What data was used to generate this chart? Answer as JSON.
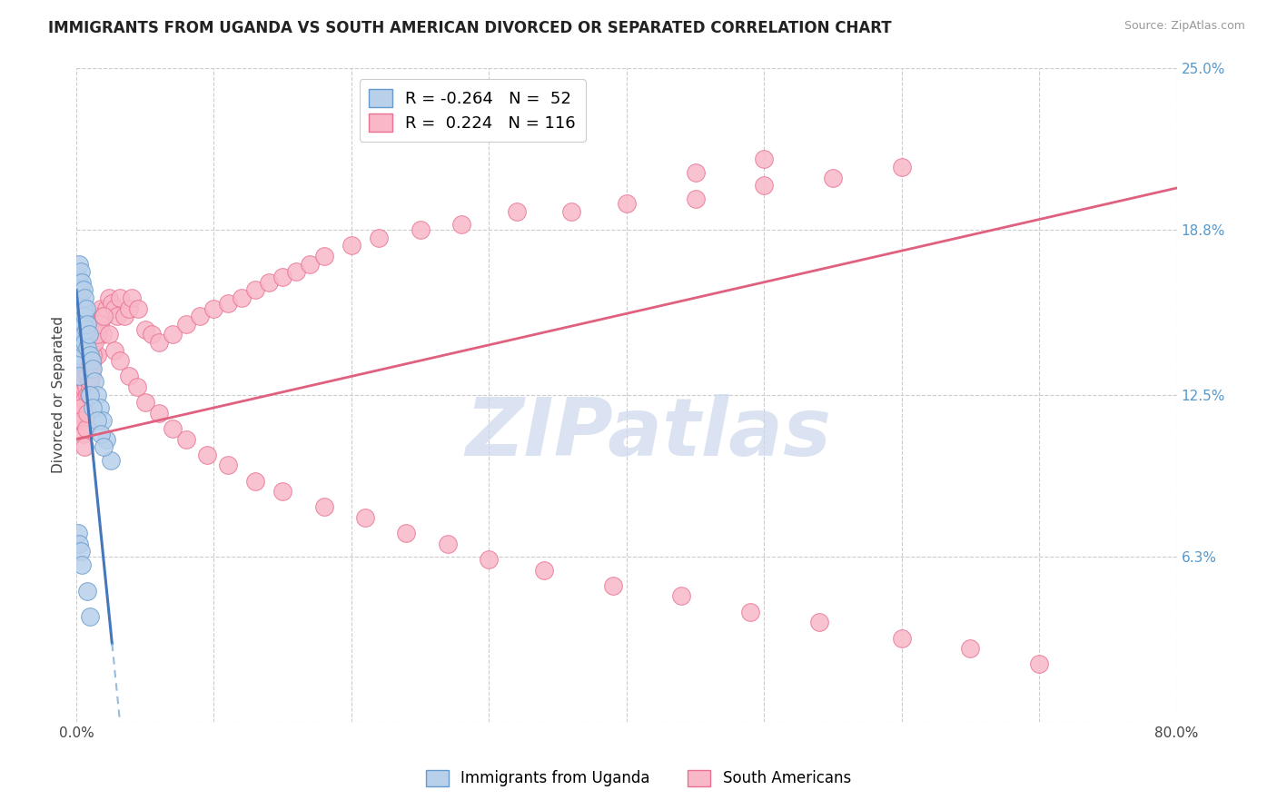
{
  "title": "IMMIGRANTS FROM UGANDA VS SOUTH AMERICAN DIVORCED OR SEPARATED CORRELATION CHART",
  "source": "Source: ZipAtlas.com",
  "ylabel": "Divorced or Separated",
  "legend_entry1": "R = -0.264   N =  52",
  "legend_entry2": "R =  0.224   N = 116",
  "legend_label1": "Immigrants from Uganda",
  "legend_label2": "South Americans",
  "xlim": [
    0.0,
    0.8
  ],
  "ylim": [
    0.0,
    0.25
  ],
  "ytick_vals": [
    0.0,
    0.063,
    0.125,
    0.188,
    0.25
  ],
  "ytick_labels_right": [
    "",
    "6.3%",
    "12.5%",
    "18.8%",
    "25.0%"
  ],
  "xtick_vals": [
    0.0,
    0.1,
    0.2,
    0.3,
    0.4,
    0.5,
    0.6,
    0.7,
    0.8
  ],
  "xtick_labels": [
    "0.0%",
    "",
    "",
    "",
    "",
    "",
    "",
    "",
    "80.0%"
  ],
  "color_blue_fill": "#b8d0ea",
  "color_blue_edge": "#6699cc",
  "color_pink_fill": "#f8b8c8",
  "color_pink_edge": "#e87090",
  "trend_blue_color": "#4477bb",
  "trend_blue_dash_color": "#99bbdd",
  "trend_pink_color": "#e06080",
  "background": "#ffffff",
  "watermark": "ZIPatlas",
  "watermark_color": "#ccd8ee",
  "title_fontsize": 12,
  "axis_fontsize": 11,
  "tick_fontsize": 11,
  "right_tick_color": "#5599cc",
  "blue_x": [
    0.001,
    0.001,
    0.001,
    0.001,
    0.001,
    0.002,
    0.002,
    0.002,
    0.002,
    0.002,
    0.002,
    0.002,
    0.003,
    0.003,
    0.003,
    0.003,
    0.003,
    0.004,
    0.004,
    0.004,
    0.004,
    0.005,
    0.005,
    0.005,
    0.006,
    0.006,
    0.006,
    0.007,
    0.007,
    0.008,
    0.008,
    0.009,
    0.01,
    0.011,
    0.012,
    0.013,
    0.015,
    0.017,
    0.019,
    0.022,
    0.025,
    0.01,
    0.012,
    0.015,
    0.018,
    0.02,
    0.001,
    0.002,
    0.003,
    0.004,
    0.008,
    0.01
  ],
  "blue_y": [
    0.17,
    0.162,
    0.155,
    0.148,
    0.14,
    0.175,
    0.168,
    0.16,
    0.152,
    0.145,
    0.138,
    0.132,
    0.172,
    0.165,
    0.158,
    0.15,
    0.143,
    0.168,
    0.16,
    0.152,
    0.145,
    0.165,
    0.158,
    0.148,
    0.162,
    0.155,
    0.145,
    0.158,
    0.15,
    0.152,
    0.143,
    0.148,
    0.14,
    0.138,
    0.135,
    0.13,
    0.125,
    0.12,
    0.115,
    0.108,
    0.1,
    0.125,
    0.12,
    0.115,
    0.11,
    0.105,
    0.072,
    0.068,
    0.065,
    0.06,
    0.05,
    0.04
  ],
  "pink_x": [
    0.001,
    0.001,
    0.002,
    0.002,
    0.002,
    0.003,
    0.003,
    0.003,
    0.004,
    0.004,
    0.004,
    0.005,
    0.005,
    0.005,
    0.006,
    0.006,
    0.007,
    0.007,
    0.008,
    0.008,
    0.009,
    0.009,
    0.01,
    0.01,
    0.011,
    0.011,
    0.012,
    0.012,
    0.013,
    0.013,
    0.014,
    0.015,
    0.015,
    0.016,
    0.017,
    0.018,
    0.019,
    0.02,
    0.022,
    0.024,
    0.026,
    0.028,
    0.03,
    0.032,
    0.035,
    0.038,
    0.04,
    0.045,
    0.05,
    0.055,
    0.06,
    0.07,
    0.08,
    0.09,
    0.1,
    0.11,
    0.12,
    0.13,
    0.14,
    0.15,
    0.16,
    0.17,
    0.18,
    0.2,
    0.22,
    0.25,
    0.28,
    0.32,
    0.36,
    0.4,
    0.45,
    0.5,
    0.003,
    0.004,
    0.005,
    0.006,
    0.007,
    0.008,
    0.009,
    0.01,
    0.011,
    0.012,
    0.013,
    0.015,
    0.017,
    0.02,
    0.024,
    0.028,
    0.032,
    0.038,
    0.044,
    0.05,
    0.06,
    0.07,
    0.08,
    0.095,
    0.11,
    0.13,
    0.15,
    0.18,
    0.21,
    0.24,
    0.27,
    0.3,
    0.34,
    0.39,
    0.44,
    0.49,
    0.54,
    0.6,
    0.65,
    0.7,
    0.45,
    0.5,
    0.55,
    0.6
  ],
  "pink_y": [
    0.125,
    0.118,
    0.13,
    0.122,
    0.115,
    0.128,
    0.122,
    0.116,
    0.132,
    0.125,
    0.118,
    0.135,
    0.128,
    0.12,
    0.13,
    0.123,
    0.135,
    0.128,
    0.132,
    0.125,
    0.138,
    0.13,
    0.135,
    0.128,
    0.14,
    0.132,
    0.145,
    0.138,
    0.148,
    0.14,
    0.15,
    0.148,
    0.14,
    0.152,
    0.155,
    0.158,
    0.148,
    0.155,
    0.158,
    0.162,
    0.16,
    0.158,
    0.155,
    0.162,
    0.155,
    0.158,
    0.162,
    0.158,
    0.15,
    0.148,
    0.145,
    0.148,
    0.152,
    0.155,
    0.158,
    0.16,
    0.162,
    0.165,
    0.168,
    0.17,
    0.172,
    0.175,
    0.178,
    0.182,
    0.185,
    0.188,
    0.19,
    0.195,
    0.195,
    0.198,
    0.2,
    0.205,
    0.12,
    0.115,
    0.11,
    0.105,
    0.112,
    0.118,
    0.125,
    0.13,
    0.135,
    0.14,
    0.145,
    0.148,
    0.152,
    0.155,
    0.148,
    0.142,
    0.138,
    0.132,
    0.128,
    0.122,
    0.118,
    0.112,
    0.108,
    0.102,
    0.098,
    0.092,
    0.088,
    0.082,
    0.078,
    0.072,
    0.068,
    0.062,
    0.058,
    0.052,
    0.048,
    0.042,
    0.038,
    0.032,
    0.028,
    0.022,
    0.21,
    0.215,
    0.208,
    0.212
  ],
  "blue_trend_x0": 0.0,
  "blue_trend_x_solid_end": 0.026,
  "blue_trend_x_dash_end": 0.8,
  "blue_trend_y_at_0": 0.165,
  "blue_trend_slope": -5.2,
  "pink_trend_y_at_0": 0.108,
  "pink_trend_slope": 0.12
}
